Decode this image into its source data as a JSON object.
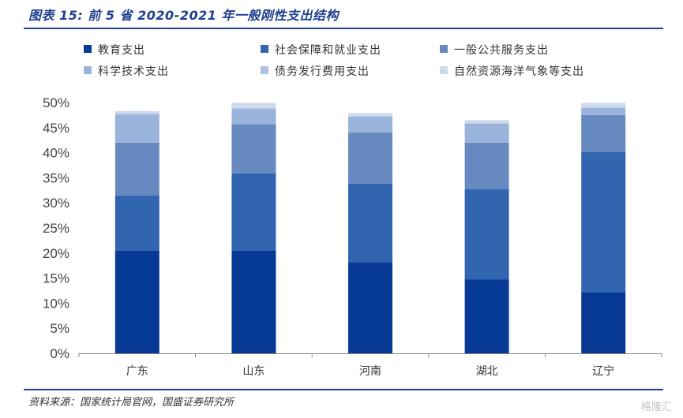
{
  "header": {
    "title": "图表 15:  前 5 省 2020-2021 年一般刚性支出结构"
  },
  "footer": {
    "source": "资料来源：国家统计局官网，国盛证券研究所",
    "watermark": "格隆汇"
  },
  "chart_data": {
    "type": "bar",
    "stacked": true,
    "categories": [
      "广东",
      "山东",
      "河南",
      "湖北",
      "辽宁"
    ],
    "ylim": [
      0,
      50
    ],
    "ytick_step": 5,
    "ytick_format": "percent",
    "legend_position": "top",
    "series": [
      {
        "name": "教育支出",
        "color": "#063a94",
        "values": [
          20.5,
          20.5,
          18.2,
          14.7,
          12.2
        ]
      },
      {
        "name": "社会保障和就业支出",
        "color": "#3165b0",
        "values": [
          11.0,
          15.4,
          15.6,
          18.0,
          27.9
        ]
      },
      {
        "name": "一般公共服务支出",
        "color": "#6689c0",
        "values": [
          10.5,
          9.8,
          10.2,
          9.3,
          7.4
        ]
      },
      {
        "name": "科学技术支出",
        "color": "#9ab3da",
        "values": [
          5.5,
          3.0,
          3.2,
          3.8,
          1.4
        ]
      },
      {
        "name": "债务发行费用支出",
        "color": "#aec2e2",
        "values": [
          0.3,
          0.2,
          0.1,
          0.1,
          0.1
        ]
      },
      {
        "name": "自然资源海洋气象等支出",
        "color": "#cdd9ec",
        "values": [
          0.5,
          1.0,
          0.6,
          0.6,
          0.9
        ]
      }
    ]
  }
}
